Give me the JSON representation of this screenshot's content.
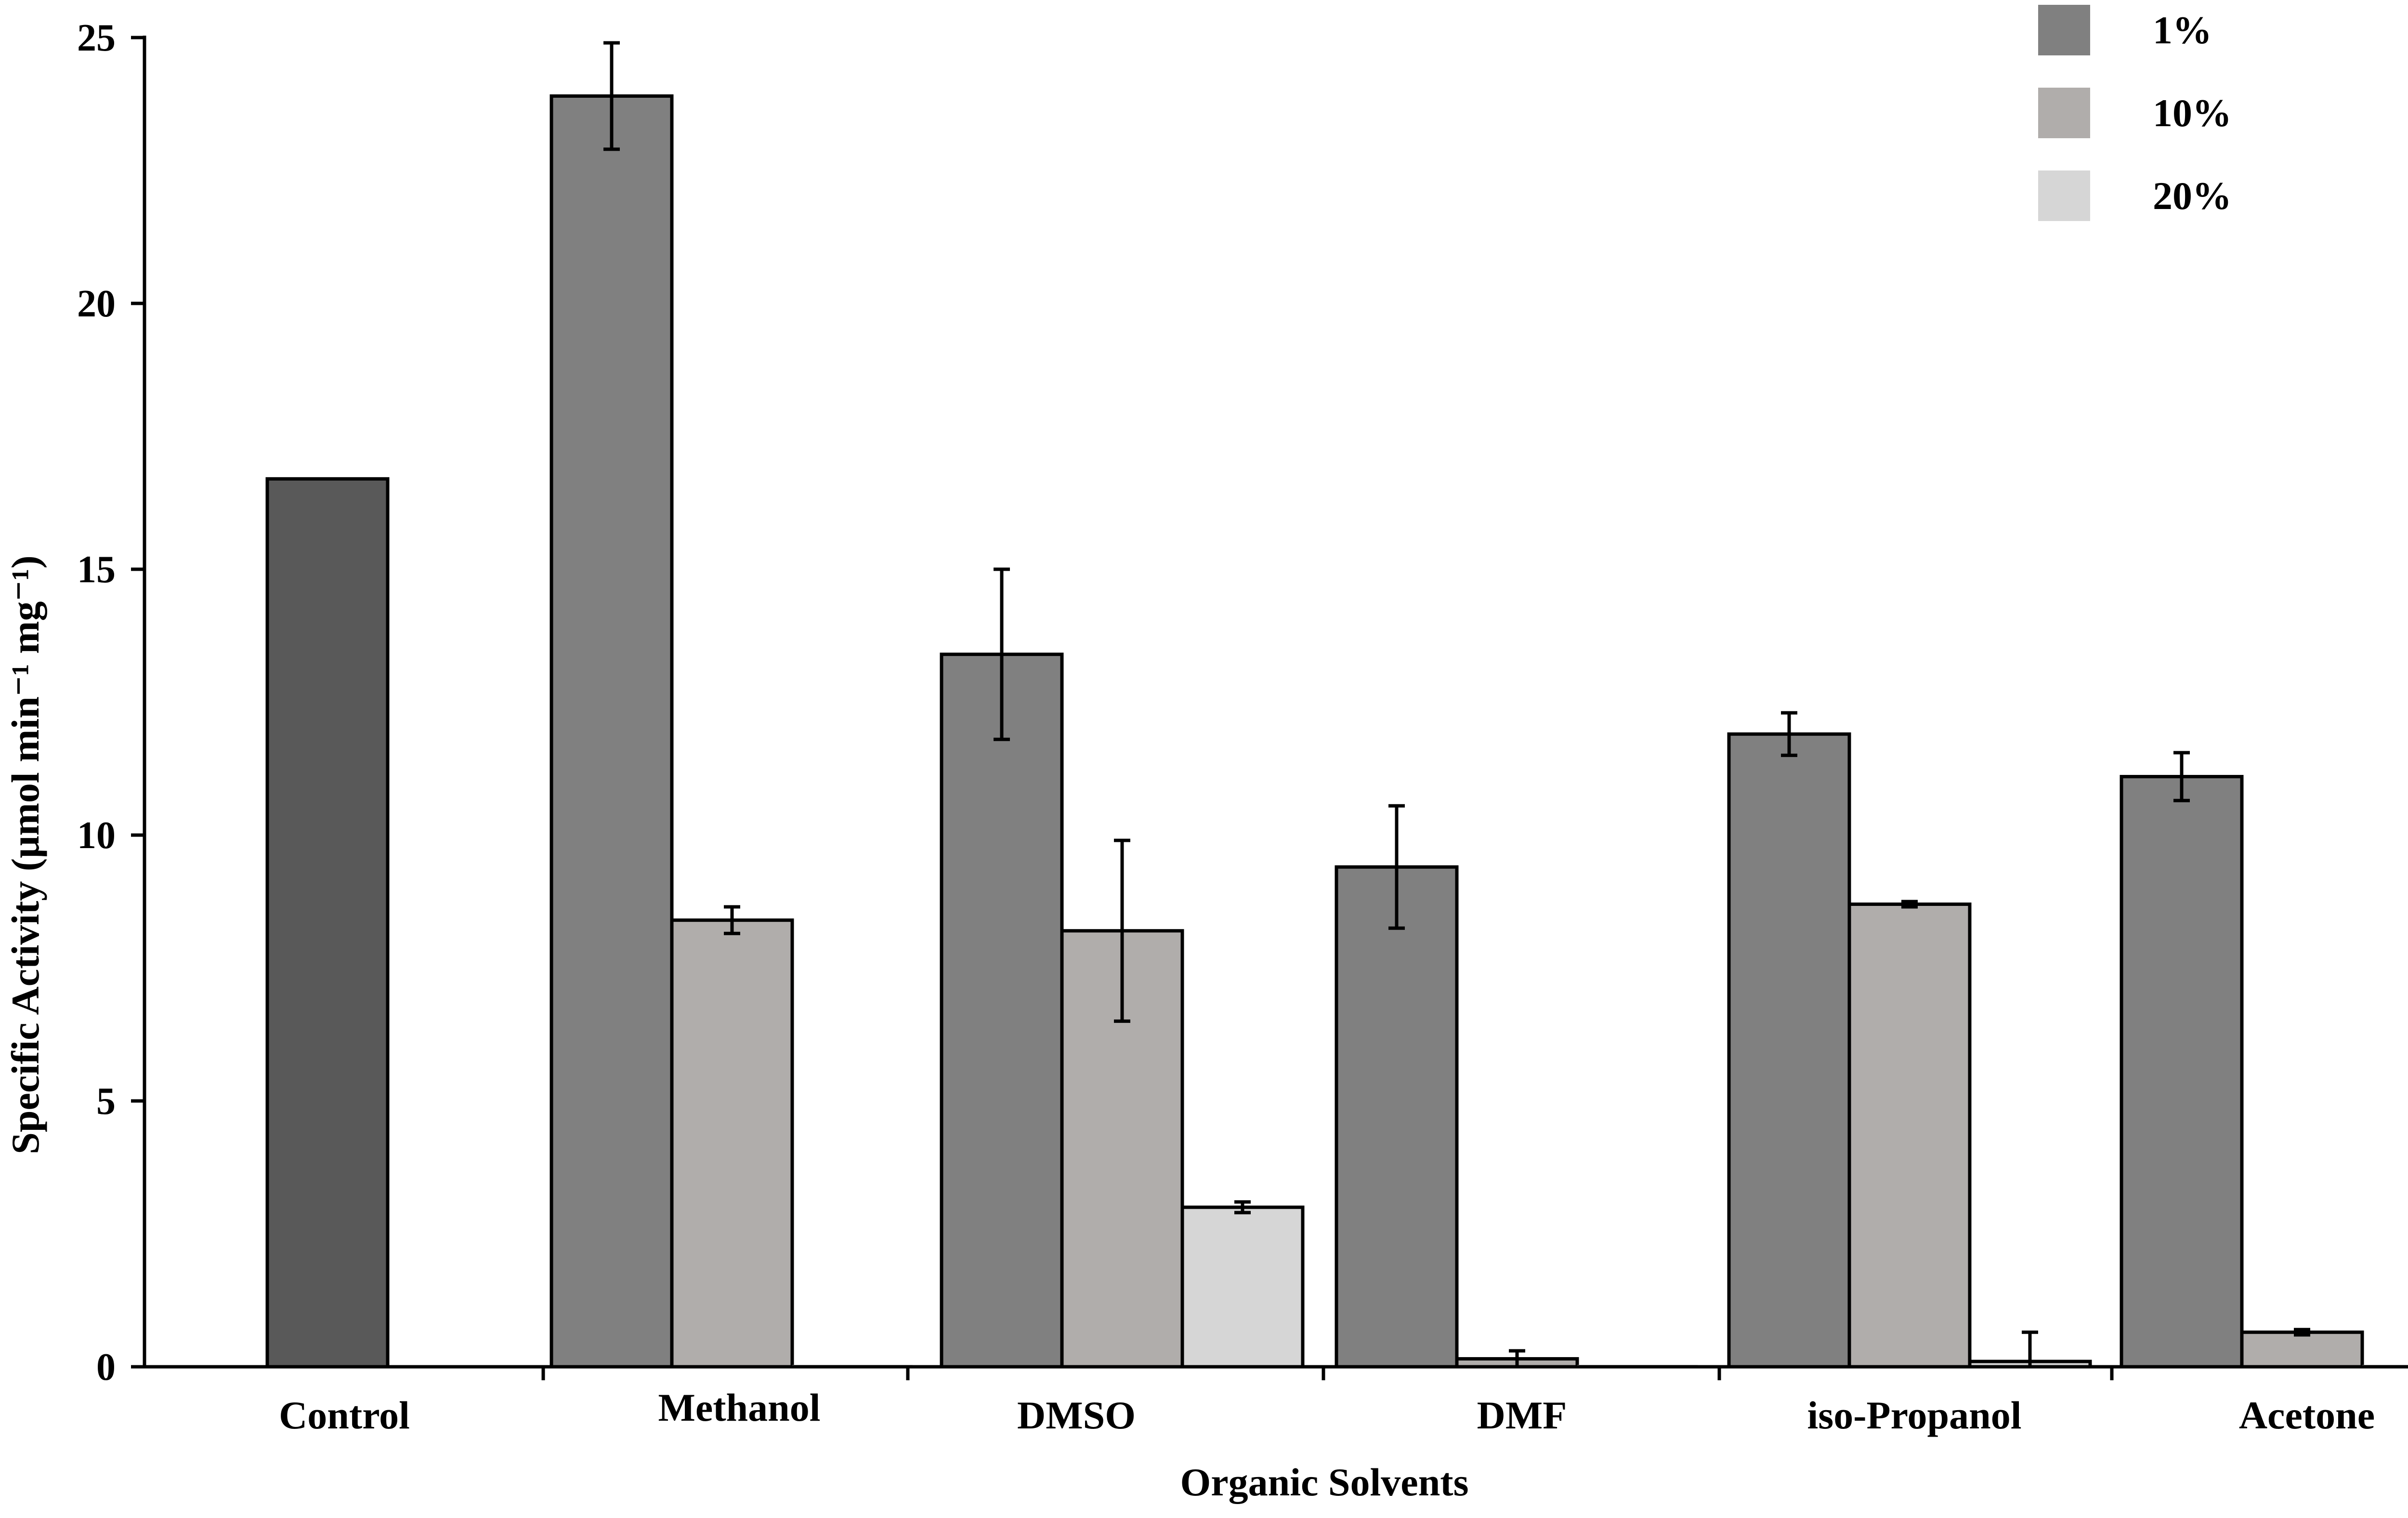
{
  "chart_data": {
    "type": "bar",
    "xlabel": "Organic Solvents",
    "ylabel": "Specific Activity (μmol min⁻¹ mg⁻¹)",
    "ylim": [
      0,
      25
    ],
    "yticks": [
      0,
      5,
      10,
      15,
      20,
      25
    ],
    "grid": false,
    "legend_position": "top-right",
    "categories": [
      "Control",
      "Methanol",
      "DMSO",
      "DMF",
      "iso-Propanol",
      "Acetone"
    ],
    "control": {
      "category": "Control",
      "value": 16.7,
      "color": "#595959"
    },
    "series": [
      {
        "name": "1%",
        "color": "#808080",
        "values": [
          null,
          23.9,
          13.4,
          9.4,
          11.9,
          11.1
        ],
        "errors": [
          null,
          1.0,
          1.6,
          1.15,
          0.4,
          0.45
        ]
      },
      {
        "name": "10%",
        "color": "#b0adab",
        "values": [
          null,
          8.4,
          8.2,
          0.15,
          8.7,
          0.65
        ],
        "errors": [
          null,
          0.25,
          1.7,
          0.15,
          0.05,
          0.05
        ]
      },
      {
        "name": "20%",
        "color": "#d6d6d6",
        "values": [
          null,
          0,
          3.0,
          0,
          0.1,
          0
        ],
        "errors": [
          null,
          0,
          0.1,
          0,
          0.55,
          0
        ]
      }
    ]
  }
}
